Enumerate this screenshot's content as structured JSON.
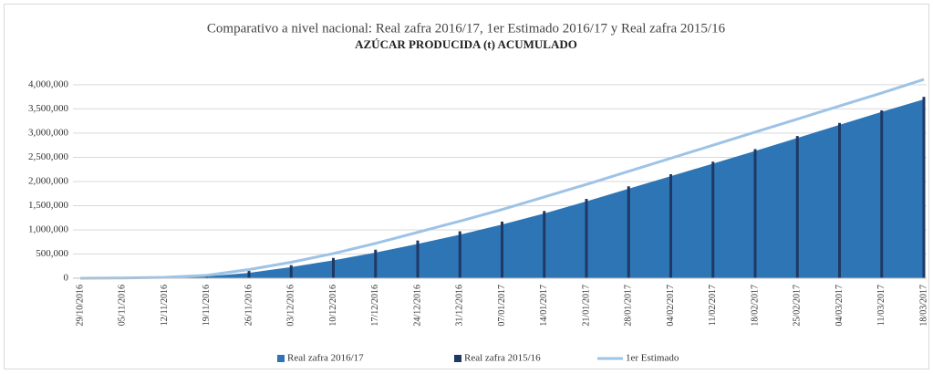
{
  "chart_data": {
    "type": "combo",
    "title": "Comparativo a nivel nacional: Real zafra 2016/17, 1er Estimado 2016/17 y Real zafra 2015/16",
    "subtitle": "AZÚCAR PRODUCIDA (t) ACUMULADO",
    "categories": [
      "29/10/2016",
      "05/11/2016",
      "12/11/2016",
      "19/11/2016",
      "26/11/2016",
      "03/12/2016",
      "10/12/2016",
      "17/12/2016",
      "24/12/2016",
      "31/12/2016",
      "07/01/2017",
      "14/01/2017",
      "21/01/2017",
      "28/01/2017",
      "04/02/2017",
      "11/02/2017",
      "18/02/2017",
      "25/02/2017",
      "04/03/2017",
      "11/03/2017",
      "18/03/2017"
    ],
    "series": [
      {
        "name": "Real zafra 2016/17",
        "kind": "area",
        "color": "#2e75b6",
        "values": [
          0,
          5000,
          15000,
          40000,
          110000,
          230000,
          370000,
          530000,
          710000,
          900000,
          1110000,
          1340000,
          1590000,
          1850000,
          2110000,
          2370000,
          2630000,
          2900000,
          3170000,
          3440000,
          3700000
        ]
      },
      {
        "name": "Real zafra 2015/16",
        "kind": "bar",
        "color": "#1f3864",
        "values": [
          0,
          0,
          10000,
          30000,
          150000,
          270000,
          420000,
          590000,
          780000,
          970000,
          1170000,
          1390000,
          1640000,
          1900000,
          2150000,
          2410000,
          2670000,
          2940000,
          3210000,
          3470000,
          3750000
        ]
      },
      {
        "name": "1er Estimado",
        "kind": "line",
        "color": "#9dc3e6",
        "values": [
          0,
          5000,
          20000,
          60000,
          180000,
          330000,
          510000,
          720000,
          950000,
          1180000,
          1420000,
          1680000,
          1940000,
          2210000,
          2480000,
          2750000,
          3020000,
          3290000,
          3560000,
          3830000,
          4110000
        ]
      }
    ],
    "ylim": [
      0,
      4300000
    ],
    "yticks": [
      0,
      {
        "value": 500000,
        "label": "500,000"
      },
      {
        "value": 1000000,
        "label": "1,000,000"
      },
      {
        "value": 1500000,
        "label": "1,500,000"
      },
      {
        "value": 2000000,
        "label": "2,000,000"
      },
      {
        "value": 2500000,
        "label": "2,500,000"
      },
      {
        "value": 3000000,
        "label": "3,000,000"
      },
      {
        "value": 3500000,
        "label": "3,500,000"
      },
      {
        "value": 4000000,
        "label": "4,000,000"
      }
    ],
    "grid": true,
    "legend": "bottom"
  }
}
